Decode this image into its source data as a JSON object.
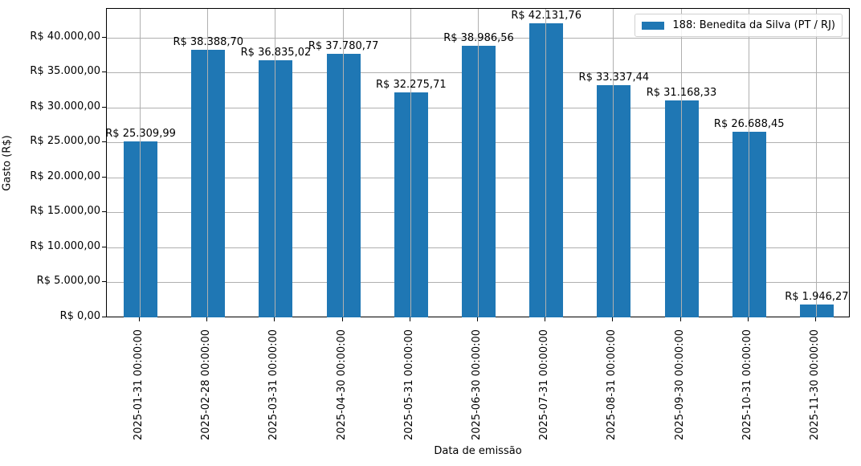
{
  "chart_data": {
    "type": "bar",
    "title": "",
    "xlabel": "Data de emissão",
    "ylabel": "Gasto (R$)",
    "ylim": [
      0,
      44238
    ],
    "grid": true,
    "legend_position": "upper right",
    "categories": [
      "2025-01-31 00:00:00",
      "2025-02-28 00:00:00",
      "2025-03-31 00:00:00",
      "2025-04-30 00:00:00",
      "2025-05-31 00:00:00",
      "2025-06-30 00:00:00",
      "2025-07-31 00:00:00",
      "2025-08-31 00:00:00",
      "2025-09-30 00:00:00",
      "2025-10-31 00:00:00",
      "2025-11-30 00:00:00"
    ],
    "series": [
      {
        "name": "188: Benedita da Silva (PT / RJ)",
        "color": "#1f77b4",
        "values": [
          25309.99,
          38388.7,
          36835.02,
          37780.77,
          32275.71,
          38986.56,
          42131.76,
          33337.44,
          31168.33,
          26688.45,
          1946.27
        ],
        "labels": [
          "R$ 25.309,99",
          "R$ 38.388,70",
          "R$ 36.835,02",
          "R$ 37.780,77",
          "R$ 32.275,71",
          "R$ 38.986,56",
          "R$ 42.131,76",
          "R$ 33.337,44",
          "R$ 31.168,33",
          "R$ 26.688,45",
          "R$ 1.946,27"
        ]
      }
    ],
    "yticks": [
      {
        "value": 0,
        "label": "R$ 0,00"
      },
      {
        "value": 5000,
        "label": "R$ 5.000,00"
      },
      {
        "value": 10000,
        "label": "R$ 10.000,00"
      },
      {
        "value": 15000,
        "label": "R$ 15.000,00"
      },
      {
        "value": 20000,
        "label": "R$ 20.000,00"
      },
      {
        "value": 25000,
        "label": "R$ 25.000,00"
      },
      {
        "value": 30000,
        "label": "R$ 30.000,00"
      },
      {
        "value": 35000,
        "label": "R$ 35.000,00"
      },
      {
        "value": 40000,
        "label": "R$ 40.000,00"
      }
    ]
  },
  "legend": {
    "label": "188: Benedita da Silva (PT / RJ)"
  },
  "axes": {
    "xlabel": "Data de emissão",
    "ylabel": "Gasto (R$)"
  }
}
